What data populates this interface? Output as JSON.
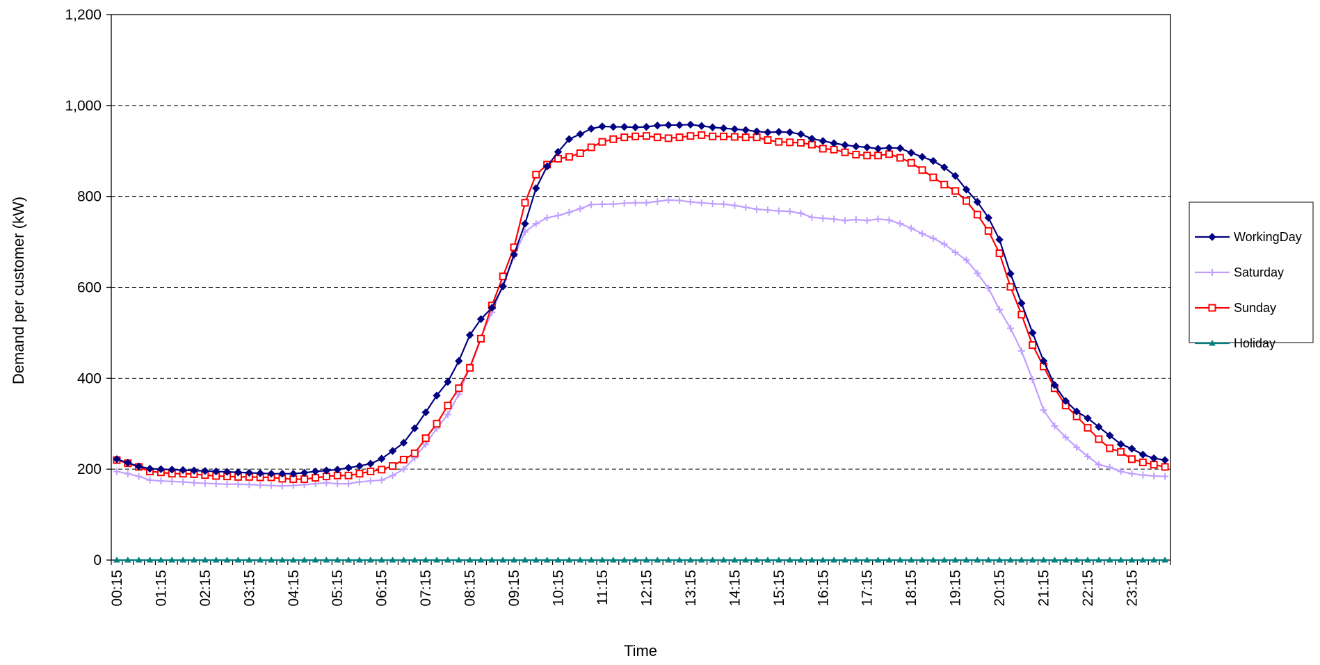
{
  "chart_data": {
    "type": "line",
    "title": "",
    "xlabel": "Time",
    "ylabel": "Demand per customer (kW)",
    "ylim": [
      0,
      1200
    ],
    "yticks": [
      0,
      200,
      400,
      600,
      800,
      1000,
      1200
    ],
    "ytick_labels": [
      "0",
      "200",
      "400",
      "600",
      "800",
      "1,000",
      "1,200"
    ],
    "x_points": 96,
    "xtick_labels": [
      "00:15",
      "01:15",
      "02:15",
      "03:15",
      "04:15",
      "05:15",
      "06:15",
      "07:15",
      "08:15",
      "09:15",
      "10:15",
      "11:15",
      "12:15",
      "13:15",
      "14:15",
      "15:15",
      "16:15",
      "17:15",
      "18:15",
      "19:15",
      "20:15",
      "21:15",
      "22:15",
      "23:15"
    ],
    "grid": "horizontal dashed",
    "legend_position": "right",
    "series": [
      {
        "name": "WorkingDay",
        "color": "#000080",
        "marker": "diamond",
        "values": [
          222,
          214,
          206,
          201,
          200,
          199,
          198,
          197,
          196,
          195,
          194,
          193,
          192,
          191,
          190,
          190,
          190,
          192,
          195,
          197,
          199,
          203,
          207,
          212,
          223,
          240,
          258,
          290,
          325,
          362,
          392,
          438,
          495,
          530,
          555,
          602,
          672,
          740,
          818,
          866,
          898,
          926,
          937,
          949,
          954,
          953,
          953,
          952,
          953,
          956,
          957,
          957,
          958,
          955,
          952,
          950,
          948,
          946,
          943,
          941,
          942,
          941,
          937,
          927,
          922,
          917,
          913,
          910,
          908,
          905,
          907,
          906,
          896,
          887,
          878,
          864,
          845,
          815,
          788,
          753,
          705,
          630,
          565,
          500,
          438,
          385,
          350,
          327,
          312,
          293,
          274,
          255,
          245,
          232,
          224,
          220
        ]
      },
      {
        "name": "Saturday",
        "color": "#C0A0FF",
        "marker": "plus",
        "values": [
          195,
          190,
          184,
          176,
          174,
          173,
          172,
          170,
          169,
          168,
          167,
          167,
          166,
          165,
          164,
          163,
          164,
          166,
          168,
          170,
          168,
          168,
          172,
          174,
          176,
          186,
          200,
          225,
          255,
          290,
          320,
          365,
          425,
          490,
          545,
          605,
          668,
          722,
          740,
          753,
          758,
          765,
          773,
          782,
          783,
          783,
          785,
          786,
          786,
          789,
          792,
          791,
          788,
          786,
          784,
          783,
          780,
          776,
          772,
          770,
          768,
          767,
          763,
          754,
          752,
          750,
          747,
          749,
          747,
          750,
          748,
          740,
          730,
          718,
          708,
          695,
          677,
          660,
          631,
          598,
          551,
          510,
          460,
          397,
          330,
          295,
          270,
          248,
          228,
          210,
          204,
          195,
          190,
          187,
          185,
          184
        ]
      },
      {
        "name": "Sunday",
        "color": "#FF0000",
        "marker": "square",
        "values": [
          220,
          213,
          205,
          195,
          193,
          190,
          190,
          189,
          187,
          185,
          184,
          183,
          183,
          182,
          182,
          179,
          178,
          178,
          181,
          184,
          186,
          186,
          190,
          195,
          199,
          207,
          221,
          235,
          268,
          300,
          340,
          378,
          423,
          487,
          560,
          624,
          688,
          786,
          848,
          870,
          883,
          887,
          895,
          908,
          920,
          926,
          930,
          932,
          933,
          930,
          928,
          930,
          933,
          935,
          932,
          932,
          931,
          930,
          930,
          924,
          920,
          919,
          918,
          914,
          905,
          903,
          897,
          892,
          890,
          890,
          893,
          885,
          874,
          858,
          842,
          826,
          812,
          790,
          760,
          724,
          675,
          601,
          540,
          473,
          426,
          378,
          340,
          316,
          291,
          266,
          246,
          238,
          222,
          215,
          210,
          205
        ]
      },
      {
        "name": "Holiday",
        "color": "#008080",
        "marker": "triangle",
        "values": [
          0,
          0,
          0,
          0,
          0,
          0,
          0,
          0,
          0,
          0,
          0,
          0,
          0,
          0,
          0,
          0,
          0,
          0,
          0,
          0,
          0,
          0,
          0,
          0,
          0,
          0,
          0,
          0,
          0,
          0,
          0,
          0,
          0,
          0,
          0,
          0,
          0,
          0,
          0,
          0,
          0,
          0,
          0,
          0,
          0,
          0,
          0,
          0,
          0,
          0,
          0,
          0,
          0,
          0,
          0,
          0,
          0,
          0,
          0,
          0,
          0,
          0,
          0,
          0,
          0,
          0,
          0,
          0,
          0,
          0,
          0,
          0,
          0,
          0,
          0,
          0,
          0,
          0,
          0,
          0,
          0,
          0,
          0,
          0,
          0,
          0,
          0,
          0,
          0,
          0,
          0,
          0,
          0,
          0,
          0,
          0
        ]
      }
    ]
  }
}
